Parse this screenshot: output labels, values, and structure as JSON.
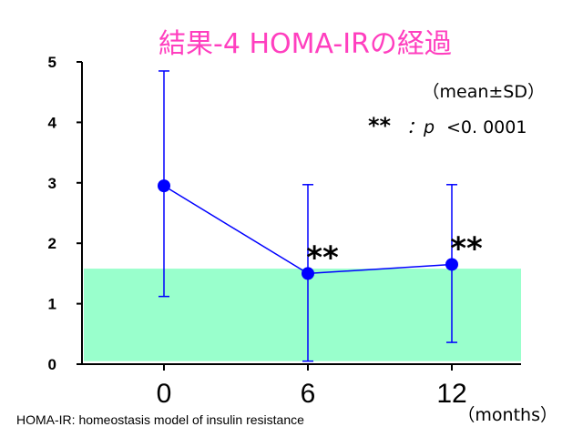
{
  "chart_data": {
    "type": "line",
    "title": "結果-4  HOMA-IRの経過",
    "categories": [
      "0",
      "6",
      "12"
    ],
    "x_unit_label": "（months）",
    "y_ticks": [
      "0",
      "1",
      "2",
      "3",
      "4",
      "5"
    ],
    "ylim": [
      0,
      5
    ],
    "grid": false,
    "series": [
      {
        "values": [
          2.95,
          1.5,
          1.65
        ],
        "sd": [
          1.9,
          1.5,
          1.3
        ],
        "error_bar_low": [
          1.12,
          0.05,
          0.36
        ],
        "error_bar_high": [
          4.85,
          2.97,
          2.97
        ],
        "significance": [
          "",
          "**",
          "**"
        ],
        "color": "#0000ff"
      }
    ],
    "reference_band": {
      "low": 0.05,
      "high": 1.58,
      "color": "#99ffcc"
    },
    "annotation_mean_sd": "（mean±SD）",
    "annotation_p_stars": "**",
    "annotation_p_label": "：p",
    "annotation_p_value": "<0.  0001",
    "footnote": "HOMA-IR: homeostasis model of insulin resistance"
  }
}
